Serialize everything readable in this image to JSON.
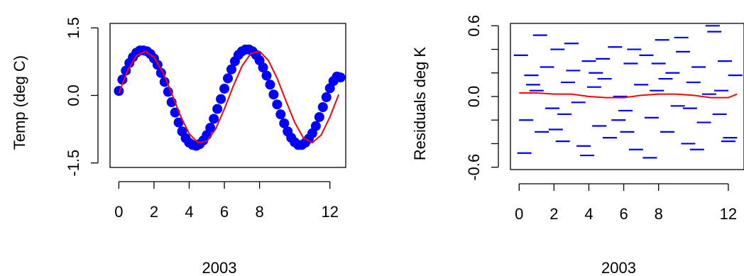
{
  "chart_data": [
    {
      "type": "scatter",
      "title": "",
      "xlabel": "2003",
      "ylabel": "Temp (deg C)",
      "xlim": [
        -0.5,
        12.9
      ],
      "ylim": [
        -1.6,
        1.6
      ],
      "x_ticks": [
        0,
        2,
        4,
        6,
        8,
        12
      ],
      "x_tick_labels": [
        "0",
        "2",
        "4",
        "6",
        "8",
        "12"
      ],
      "y_ticks": [
        -1.5,
        0.0,
        1.5
      ],
      "y_tick_labels": [
        "-1.5",
        "0.0",
        "1.5"
      ],
      "grid": false,
      "point_color": "#0000ff",
      "fit_color": "#ff0000",
      "series": [
        {
          "kind": "points",
          "x": [
            0.0,
            0.2,
            0.4,
            0.6,
            0.8,
            1.0,
            1.2,
            1.4,
            1.6,
            1.8,
            2.0,
            2.2,
            2.4,
            2.6,
            2.8,
            3.0,
            3.2,
            3.4,
            3.6,
            3.8,
            4.0,
            4.2,
            4.4,
            4.6,
            4.8,
            5.0,
            5.2,
            5.4,
            5.6,
            5.8,
            6.0,
            6.2,
            6.4,
            6.6,
            6.8,
            7.0,
            7.2,
            7.4,
            7.6,
            7.8,
            8.0,
            8.2,
            8.4,
            8.6,
            8.8,
            9.0,
            9.2,
            9.4,
            9.6,
            9.8,
            10.0,
            10.2,
            10.4,
            10.6,
            10.8,
            11.0,
            11.2,
            11.4,
            11.6,
            11.8,
            12.0,
            12.2,
            12.4,
            12.6
          ],
          "y": [
            0.1,
            0.35,
            0.55,
            0.72,
            0.85,
            0.95,
            1.0,
            1.0,
            0.98,
            0.92,
            0.82,
            0.68,
            0.5,
            0.3,
            0.08,
            -0.15,
            -0.38,
            -0.6,
            -0.8,
            -0.95,
            -1.05,
            -1.1,
            -1.12,
            -1.08,
            -1.0,
            -0.88,
            -0.72,
            -0.52,
            -0.3,
            -0.08,
            0.15,
            0.38,
            0.58,
            0.76,
            0.9,
            0.98,
            1.02,
            1.02,
            0.98,
            0.9,
            0.78,
            0.62,
            0.44,
            0.24,
            0.02,
            -0.2,
            -0.42,
            -0.62,
            -0.8,
            -0.94,
            -1.04,
            -1.1,
            -1.1,
            -1.05,
            -0.96,
            -0.84,
            -0.68,
            -0.48,
            -0.26,
            -0.04,
            0.16,
            0.32,
            0.42,
            0.4
          ]
        },
        {
          "kind": "fit",
          "x": [
            0,
            0.5,
            1,
            1.5,
            2,
            2.5,
            3,
            3.5,
            4,
            4.5,
            5,
            5.5,
            6,
            6.5,
            7,
            7.5,
            8,
            8.5,
            9,
            9.5,
            10,
            10.5,
            11,
            11.5,
            12,
            12.5
          ],
          "y": [
            0.05,
            0.55,
            0.88,
            0.98,
            0.85,
            0.52,
            0.05,
            -0.45,
            -0.85,
            -1.05,
            -1.02,
            -0.75,
            -0.3,
            0.2,
            0.65,
            0.93,
            0.98,
            0.78,
            0.38,
            -0.12,
            -0.6,
            -0.95,
            -1.05,
            -0.88,
            -0.48,
            0.02
          ]
        }
      ]
    },
    {
      "type": "scatter",
      "title": "",
      "xlabel": "2003",
      "ylabel": "Residuals deg K",
      "xlim": [
        -0.5,
        12.9
      ],
      "ylim": [
        -0.62,
        0.62
      ],
      "x_ticks": [
        0,
        2,
        4,
        6,
        8,
        12
      ],
      "x_tick_labels": [
        "0",
        "2",
        "4",
        "6",
        "8",
        "12"
      ],
      "y_ticks": [
        -0.6,
        -0.4,
        -0.2,
        0.0,
        0.2,
        0.4,
        0.6
      ],
      "y_tick_labels": [
        "-0.6",
        "",
        "",
        "0.0",
        "",
        "",
        "0.6"
      ],
      "grid": false,
      "point_color": "#0000ff",
      "fit_color": "#ff0000",
      "series": [
        {
          "kind": "dashes",
          "x": [
            0.1,
            0.4,
            0.7,
            1.0,
            1.3,
            1.6,
            1.9,
            2.2,
            2.5,
            2.8,
            3.1,
            3.4,
            3.7,
            4.0,
            4.3,
            4.6,
            4.9,
            5.2,
            5.5,
            5.8,
            6.1,
            6.4,
            6.7,
            7.0,
            7.3,
            7.6,
            7.9,
            8.2,
            8.5,
            8.8,
            9.1,
            9.4,
            9.7,
            10.0,
            10.3,
            10.6,
            10.9,
            11.2,
            11.5,
            11.8,
            12.1,
            12.4,
            0.3,
            1.2,
            2.1,
            3.0,
            3.9,
            4.8,
            5.7,
            6.6,
            7.5,
            8.4,
            9.3,
            10.2,
            11.1,
            12.0,
            0.8,
            2.6,
            4.4,
            6.2,
            8.0,
            9.8,
            11.6
          ],
          "y": [
            0.35,
            -0.2,
            0.18,
            0.05,
            -0.3,
            0.25,
            -0.1,
            0.4,
            -0.38,
            0.12,
            0.22,
            -0.05,
            -0.42,
            0.3,
            0.08,
            -0.25,
            0.15,
            -0.35,
            0.42,
            0.0,
            -0.12,
            0.28,
            -0.45,
            0.1,
            0.35,
            -0.18,
            0.05,
            0.48,
            -0.3,
            0.2,
            -0.08,
            0.38,
            -0.4,
            0.12,
            0.25,
            -0.22,
            0.02,
            0.55,
            -0.15,
            0.3,
            -0.35,
            0.18,
            -0.48,
            0.52,
            -0.28,
            0.45,
            -0.5,
            0.32,
            -0.2,
            0.4,
            -0.52,
            0.15,
            0.5,
            -0.45,
            0.6,
            -0.38,
            0.1,
            -0.15,
            0.2,
            -0.3,
            0.28,
            -0.1,
            0.05
          ]
        },
        {
          "kind": "fit",
          "x": [
            0,
            1,
            2,
            3,
            4,
            5,
            6,
            7,
            8,
            9,
            10,
            11,
            12,
            12.5
          ],
          "y": [
            0.03,
            0.03,
            0.02,
            0.02,
            0.0,
            -0.01,
            -0.01,
            0.01,
            0.02,
            0.02,
            0.01,
            -0.01,
            -0.01,
            0.02
          ]
        }
      ]
    }
  ]
}
